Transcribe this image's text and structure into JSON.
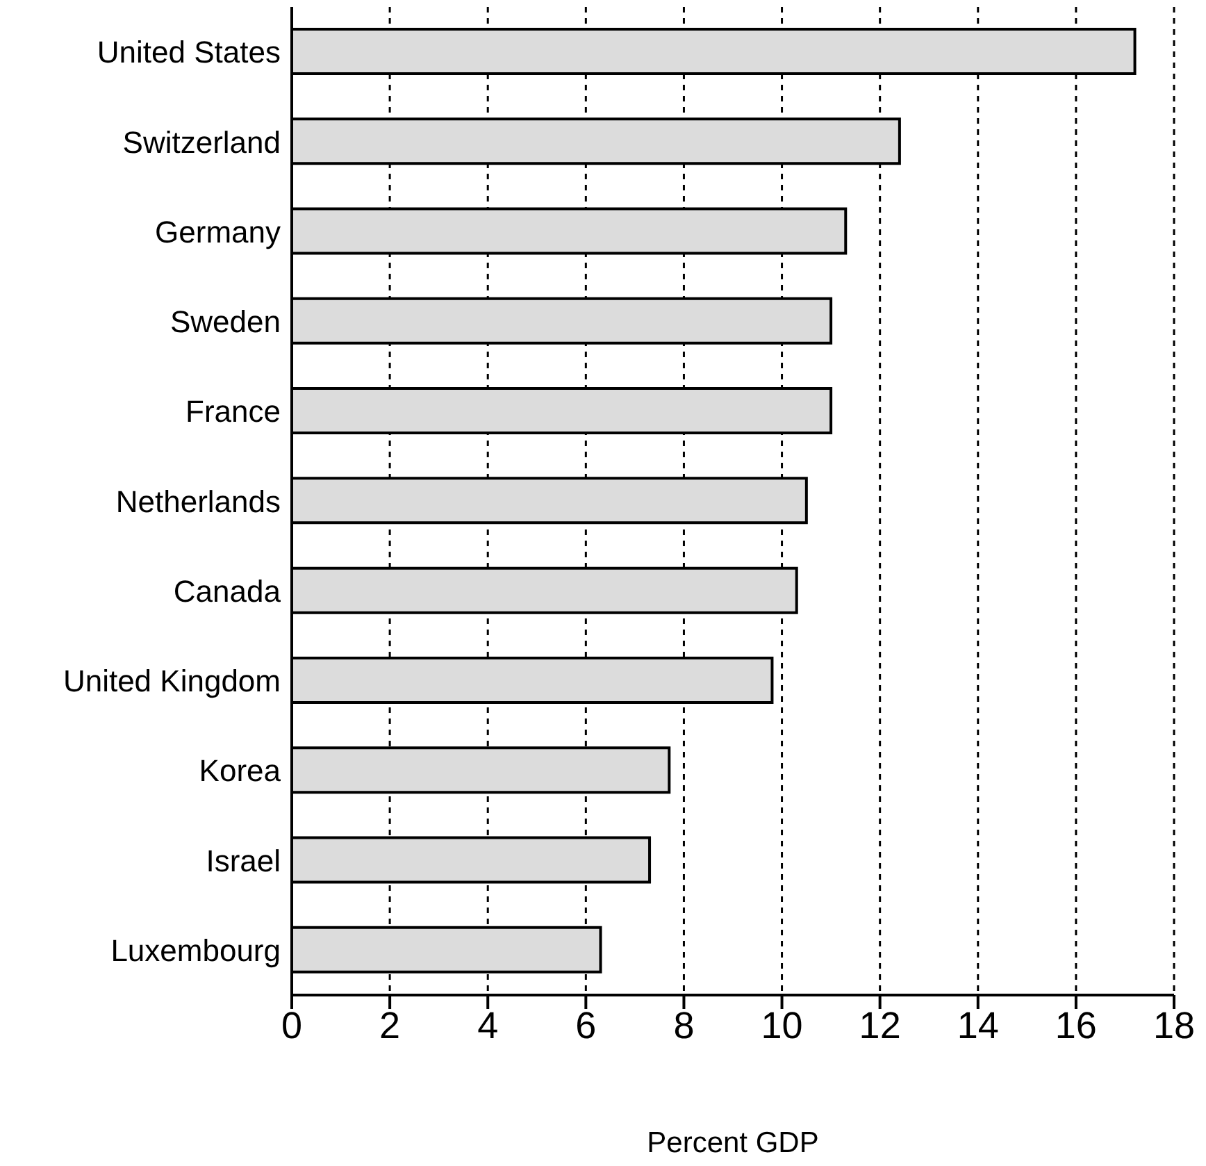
{
  "chart_data": {
    "type": "bar",
    "orientation": "horizontal",
    "xlabel": "Percent GDP",
    "categories": [
      "United States",
      "Switzerland",
      "Germany",
      "Sweden",
      "France",
      "Netherlands",
      "Canada",
      "United Kingdom",
      "Korea",
      "Israel",
      "Luxembourg"
    ],
    "values": [
      17.2,
      12.4,
      11.3,
      11.0,
      11.0,
      10.5,
      10.3,
      9.8,
      7.7,
      7.3,
      6.3
    ],
    "color": "#dcdcdc",
    "xlim": [
      0,
      18
    ],
    "xticks": [
      0,
      2,
      4,
      6,
      8,
      10,
      12,
      14,
      16,
      18
    ],
    "grid": "x"
  }
}
